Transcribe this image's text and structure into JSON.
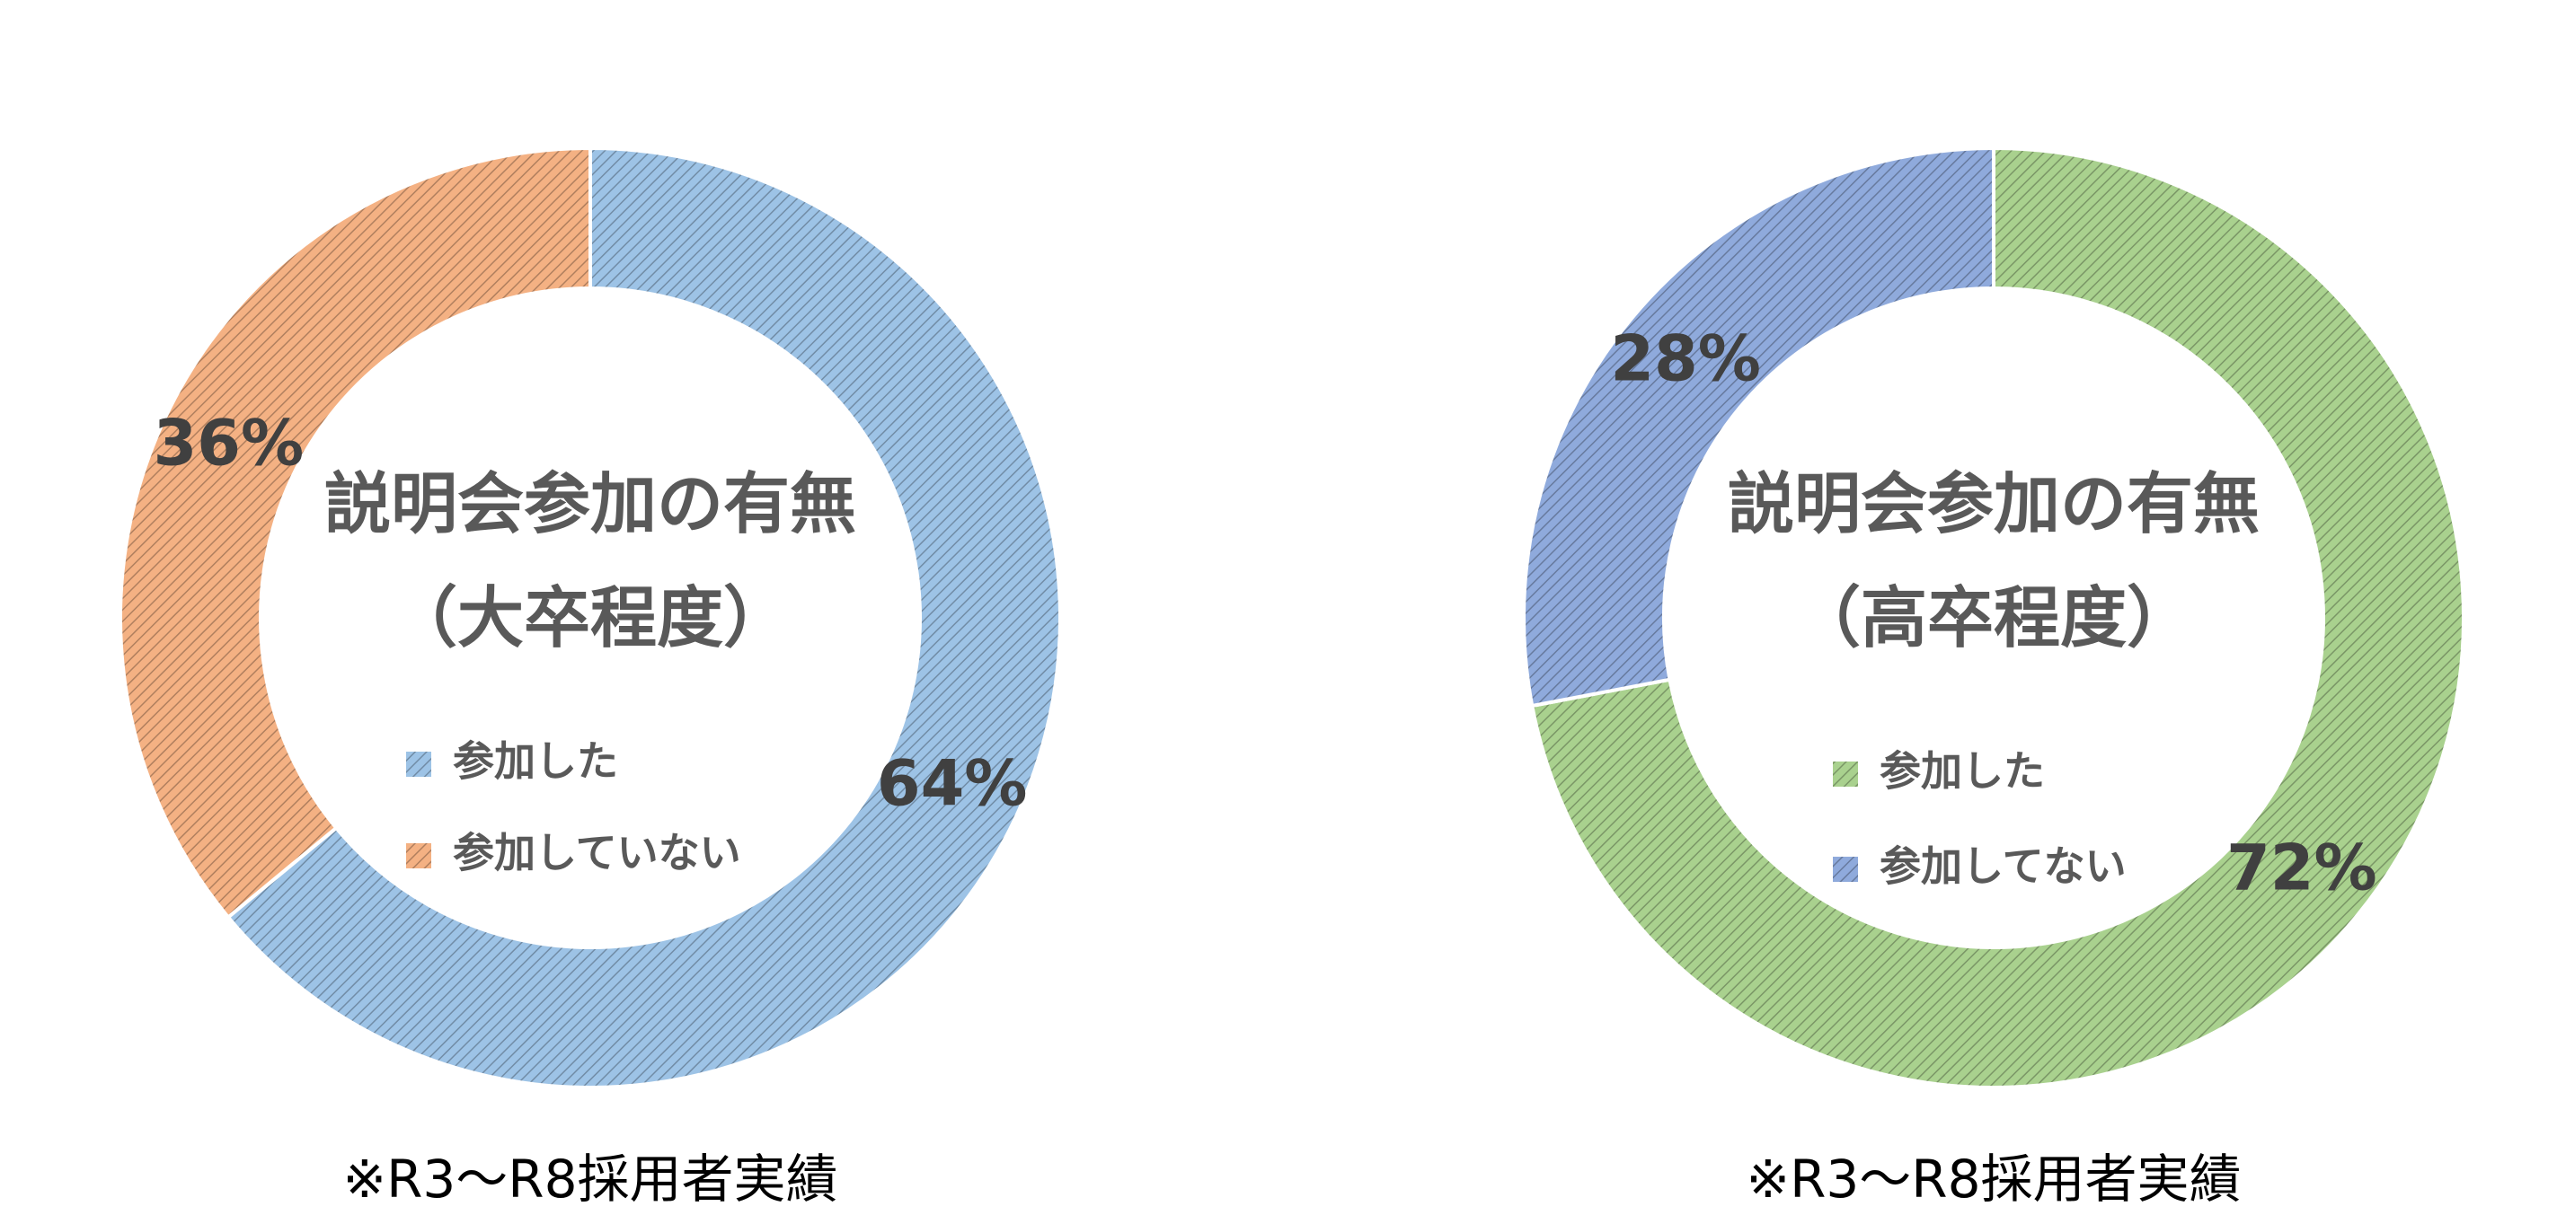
{
  "chart_data": [
    {
      "type": "donut",
      "title": "説明会参加の有無",
      "subtitle": "（大卒程度）",
      "categories": [
        "参加した",
        "参加していない"
      ],
      "values": [
        64,
        36
      ],
      "value_labels": [
        "64%",
        "36%"
      ],
      "colors": [
        "#9dc3e6",
        "#f4b183"
      ],
      "note": "※R3～R8採用者実績"
    },
    {
      "type": "donut",
      "title": "説明会参加の有無",
      "subtitle": "（高卒程度）",
      "categories": [
        "参加した",
        "参加してない"
      ],
      "values": [
        72,
        28
      ],
      "value_labels": [
        "72%",
        "28%"
      ],
      "colors": [
        "#a9d18e",
        "#8faadc"
      ],
      "note": "※R3～R8採用者実績"
    }
  ]
}
